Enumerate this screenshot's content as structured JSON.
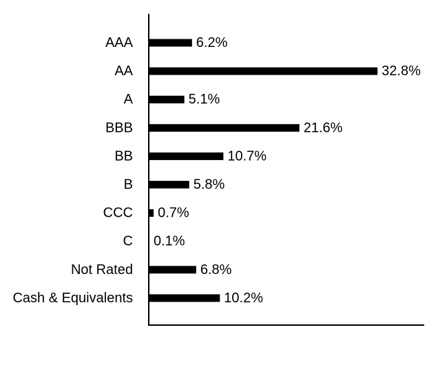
{
  "chart_data": {
    "type": "bar",
    "orientation": "horizontal",
    "title": "",
    "xlabel": "",
    "ylabel": "",
    "categories": [
      "AAA",
      "AA",
      "A",
      "BBB",
      "BB",
      "B",
      "CCC",
      "C",
      "Not Rated",
      "Cash & Equivalents"
    ],
    "values": [
      6.2,
      32.8,
      5.1,
      21.6,
      10.7,
      5.8,
      0.7,
      0.1,
      6.8,
      10.2
    ],
    "value_labels": [
      "6.2%",
      "32.8%",
      "5.1%",
      "21.6%",
      "10.7%",
      "5.8%",
      "0.7%",
      "0.1%",
      "6.8%",
      "10.2%"
    ],
    "xlim": [
      0,
      39.5
    ],
    "grid": false,
    "bar_color": "#000000",
    "axis_color": "#000000"
  }
}
